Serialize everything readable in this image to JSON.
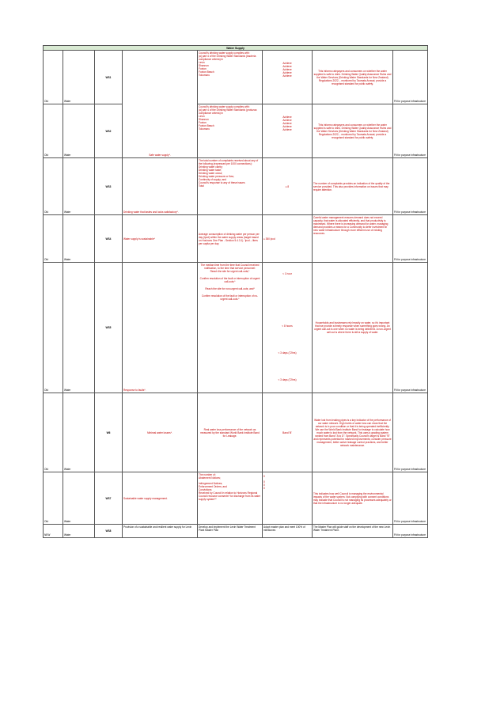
{
  "title": "Water Supply",
  "rows": [
    {
      "status": "Old",
      "activity": "Water",
      "code": "WS1",
      "measure": "",
      "target_lines": [
        "Council's drinking water supply complies with:                              (a) part 4 of the Drinking Water Standards (bacteria compliance criteria) in",
        "Levin",
        "Shannon",
        "Foxton",
        "Foxton Beach",
        "Tokomaru"
      ],
      "values": [
        "Achieve",
        "Achieve",
        "Achieve",
        "Achieve",
        "Achieve"
      ],
      "why": "This informs ratepayers and consumers on whether the water supplied is safe to drink. Drinking Water Quality Assurance Rules and the Water Services (Drinking Water Standards for New Zealand) Regulations 2022, - monitored by Taumata Arowai; provide a recognised standard for public safety.",
      "link": "Fit for purpose infrastructure"
    },
    {
      "status": "Old",
      "activity": "Water",
      "code": "WS2",
      "measure": "Safe water supply*.",
      "target_lines": [
        "Council's drinking water supply complies with:                              (a) part 4 of the Drinking Water Standards (protozoa compliance criteria) in",
        "Levin",
        "Shannon",
        "Foxton",
        "Foxton Beach",
        "Tokomaru"
      ],
      "values": [
        "Achieve",
        "Achieve",
        "Achieve",
        "Achieve",
        "Achieve"
      ],
      "why": "This informs ratepayers and consumers on whether the water supplied is safe to drink. Drinking Water Quality Assurance Rules and the Water Services (Drinking Water Standards for New Zealand) Regulations 2022, - monitored by Taumata Arowai; provide a recognised standard for public safety.",
      "link": "Fit for purpose infrastructure"
    },
    {
      "status": "Old",
      "activity": "Water",
      "code": "WS3",
      "measure": "Drinking water that tastes and looks satisfactory*.",
      "target_lines": [
        "The total number of complaints received about any of the following (expressed per 1000 connections):",
        "Drinking water clarity;",
        "Drinking water taste;",
        "Drinking water odour;",
        "Drinking water pressure or flow;",
        "Continuity of supply; and",
        "Council's response to any of these issues                                 Total"
      ],
      "values": [
        "≤ 8"
      ],
      "why": "The number of complaints provides an indication of the quality of the service provided. This also provides information on issues that may require attention.",
      "link": "Fit for purpose infrastructure"
    },
    {
      "status": "Old",
      "activity": "Water",
      "code": "WS4",
      "measure": "Water supply is sustainable*",
      "target_lines": [
        "Average consumption of drinking water per person per day (lpcd) within the water supply areas (target based on Horizons One Plan - Section 5.4.3.1). 'lpcd – litres per capita per day."
      ],
      "values": [
        "≤ 350 lpcd"
      ],
      "why": "Careful water management ensures demand does not exceed capacity, that water is allocated efficiently, and that productivity is maximised.  Where there is increasing demand for water, managing demand provides a means for a Community to defer investment in new water infrastructure through more efficient use of existing resources.",
      "link": "Fit for purpose infrastructure"
    },
    {
      "status": "Old",
      "activity": "Water",
      "code": "WS5",
      "measure": "Response to faults*.",
      "target_lines": [
        "The median time from the time that Council received notification, to the time that service personnel:",
        "Reach the site for urgent call-outs;*",
        "Confirm resolution of the fault or interruption of urgent call-outs;*",
        "Reach the site for non-urgent call-outs; and*",
        "Confirm resolution of the fault or interruption of no-urgent call-outs.*"
      ],
      "values": [
        "< 1 hour",
        "< 8 hours",
        "< 3 days (72hrs)",
        "< 3 days (72hrs)"
      ],
      "why": "Households and businesses rely heavily on water, so it's important that we provide a timely response when something goes wrong. An urgent call-out is one when no water is being delivered. A non-urgent call out is where there is still a supply of water.",
      "link": "Fit for purpose infrastructure"
    },
    {
      "status": "Old",
      "activity": "Water",
      "code": "W6",
      "measure": "Minimal water losses*.",
      "target_lines": [
        "Real water loss performance of the network as measured by the standard World Bank Institute Band for Leakage."
      ],
      "values": [
        "Band 'B'"
      ],
      "why": "Water lost from leaking pipes is a key indicator of the performance of our water network. High levels of water loss can show that the network is in poor condition or that it is being operated inefficiently. We use the World Bank Institute Band for leakage to calculate how much water is lost from the network. This uses a grading system ranked from Band \"A to D\". Specifically Council's target is Band \"B\" and represents potential for marked improvements; consider pressure management, better active leakage control practices, and better network maintenance.",
      "link": "Fit for purpose infrastructure"
    },
    {
      "status": "Old",
      "activity": "Water",
      "code": "WS7",
      "measure": "Sustainable water supply management.",
      "target_lines": [
        "The number of:",
        "Abatement Notices;",
        "Infringement Notices;",
        "Enforcement Orders; and",
        "Convictions",
        "Received by Council in relation to Horizons Regional Council resource consents* for discharge from its water supply system**"
      ],
      "values": [
        "0",
        "0",
        "0",
        "0"
      ],
      "why": "This indicates how well Council is managing the environmental impacts of the water system. Not complying with consent conditions may indicate that Council is not managing its processes adequately or that the infrastructure is no longer adequate.",
      "link": "Fit for purpose infrastructure"
    },
    {
      "status": "NEW",
      "activity": "Water",
      "code": "WS8",
      "measure": "Provision of a sustainable and resilient water supply for Levin",
      "target_lines": [
        "Develop and implement the Levin Water Treatment Plant Master Plan"
      ],
      "values": [
        "Adopt master plan and meet 100% of milestones"
      ],
      "why": "The Master Plan will guide staff on the development of the new Levin Water Treatment Plant.",
      "link": "Fit for purpose infrastructure"
    }
  ]
}
